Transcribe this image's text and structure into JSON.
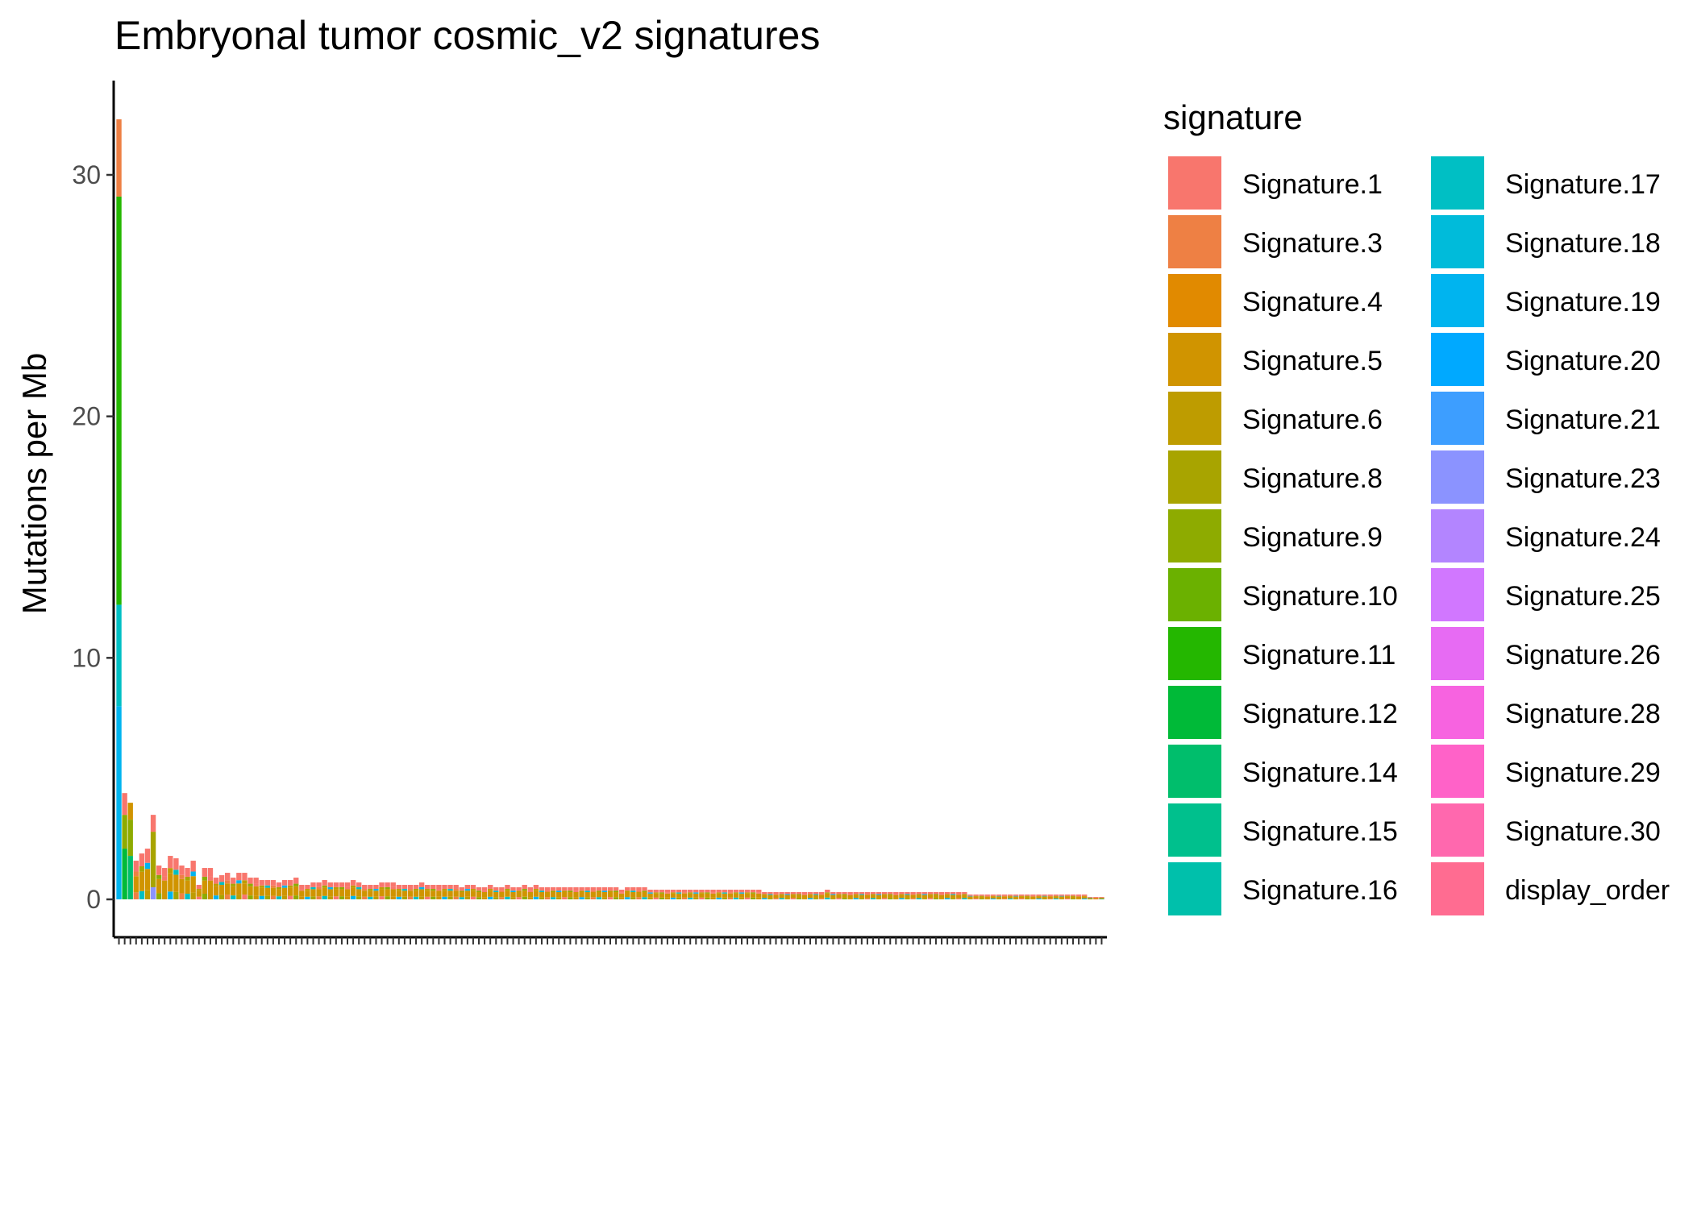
{
  "chart_data": {
    "type": "bar",
    "stacked": true,
    "title": "Embryonal tumor cosmic_v2 signatures",
    "xlabel": "",
    "ylabel": "Mutations per Mb",
    "ylim": [
      0,
      33.7
    ],
    "yticks": [
      0,
      10,
      20,
      30
    ],
    "grid": false,
    "legend_title": "signature",
    "legend_position": "right",
    "legend_columns": 2,
    "legend": [
      {
        "name": "Signature.1",
        "color": "#F8766D"
      },
      {
        "name": "Signature.3",
        "color": "#EE8044"
      },
      {
        "name": "Signature.4",
        "color": "#E18A00"
      },
      {
        "name": "Signature.5",
        "color": "#D09400"
      },
      {
        "name": "Signature.6",
        "color": "#BE9C00"
      },
      {
        "name": "Signature.8",
        "color": "#A8A400"
      },
      {
        "name": "Signature.9",
        "color": "#8EAB00"
      },
      {
        "name": "Signature.10",
        "color": "#6BB100"
      },
      {
        "name": "Signature.11",
        "color": "#24B700"
      },
      {
        "name": "Signature.12",
        "color": "#00BA38"
      },
      {
        "name": "Signature.14",
        "color": "#00BE6C"
      },
      {
        "name": "Signature.15",
        "color": "#00C08D"
      },
      {
        "name": "Signature.16",
        "color": "#00C0AB"
      },
      {
        "name": "Signature.17",
        "color": "#00BFC4"
      },
      {
        "name": "Signature.18",
        "color": "#00BBDA"
      },
      {
        "name": "Signature.19",
        "color": "#00B4EF"
      },
      {
        "name": "Signature.20",
        "color": "#00A9FF"
      },
      {
        "name": "Signature.21",
        "color": "#3D9EFF"
      },
      {
        "name": "Signature.23",
        "color": "#8B93FF"
      },
      {
        "name": "Signature.24",
        "color": "#B385FF"
      },
      {
        "name": "Signature.25",
        "color": "#D177FF"
      },
      {
        "name": "Signature.26",
        "color": "#E76BF3"
      },
      {
        "name": "Signature.28",
        "color": "#F763E0"
      },
      {
        "name": "Signature.29",
        "color": "#FF62C8"
      },
      {
        "name": "Signature.30",
        "color": "#FF68AE"
      },
      {
        "name": "display_order",
        "color": "#FF6C91"
      }
    ],
    "featured_bars": [
      {
        "index": 0,
        "segments": [
          {
            "signature": "Signature.19",
            "value": 8.0
          },
          {
            "signature": "Signature.17",
            "value": 4.2
          },
          {
            "signature": "Signature.11",
            "value": 16.9
          },
          {
            "signature": "Signature.3",
            "value": 3.2
          }
        ]
      },
      {
        "index": 1,
        "segments": [
          {
            "signature": "Signature.12",
            "value": 2.1
          },
          {
            "signature": "Signature.9",
            "value": 1.4
          },
          {
            "signature": "Signature.1",
            "value": 0.9
          }
        ]
      },
      {
        "index": 2,
        "segments": [
          {
            "signature": "Signature.14",
            "value": 1.8
          },
          {
            "signature": "Signature.9",
            "value": 1.5
          },
          {
            "signature": "Signature.5",
            "value": 0.7
          }
        ]
      },
      {
        "index": 6,
        "segments": [
          {
            "signature": "Signature.23",
            "value": 0.5
          },
          {
            "signature": "Signature.8",
            "value": 2.3
          },
          {
            "signature": "Signature.1",
            "value": 0.7
          }
        ]
      }
    ],
    "total_counts": [
      32.3,
      4.4,
      4.0,
      1.6,
      1.9,
      2.1,
      3.5,
      1.4,
      1.3,
      1.8,
      1.7,
      1.4,
      1.3,
      1.6,
      0.6,
      1.3,
      1.3,
      0.9,
      1.0,
      1.1,
      0.9,
      1.1,
      1.1,
      0.9,
      0.9,
      0.8,
      0.8,
      0.8,
      0.7,
      0.8,
      0.8,
      0.9,
      0.6,
      0.6,
      0.7,
      0.7,
      0.8,
      0.7,
      0.7,
      0.7,
      0.7,
      0.8,
      0.7,
      0.6,
      0.6,
      0.6,
      0.7,
      0.7,
      0.7,
      0.6,
      0.6,
      0.6,
      0.6,
      0.7,
      0.6,
      0.6,
      0.6,
      0.6,
      0.6,
      0.6,
      0.5,
      0.6,
      0.6,
      0.5,
      0.5,
      0.6,
      0.5,
      0.5,
      0.6,
      0.5,
      0.5,
      0.6,
      0.5,
      0.6,
      0.5,
      0.5,
      0.5,
      0.5,
      0.5,
      0.5,
      0.5,
      0.5,
      0.5,
      0.5,
      0.5,
      0.5,
      0.5,
      0.5,
      0.4,
      0.5,
      0.5,
      0.5,
      0.5,
      0.4,
      0.4,
      0.4,
      0.4,
      0.4,
      0.4,
      0.4,
      0.4,
      0.4,
      0.4,
      0.4,
      0.4,
      0.4,
      0.4,
      0.4,
      0.4,
      0.4,
      0.4,
      0.4,
      0.4,
      0.3,
      0.3,
      0.3,
      0.3,
      0.3,
      0.3,
      0.3,
      0.3,
      0.3,
      0.3,
      0.3,
      0.4,
      0.3,
      0.3,
      0.3,
      0.3,
      0.3,
      0.3,
      0.3,
      0.3,
      0.3,
      0.3,
      0.3,
      0.3,
      0.3,
      0.3,
      0.3,
      0.3,
      0.3,
      0.3,
      0.3,
      0.3,
      0.3,
      0.3,
      0.3,
      0.3,
      0.2,
      0.2,
      0.2,
      0.2,
      0.2,
      0.2,
      0.2,
      0.2,
      0.2,
      0.2,
      0.2,
      0.2,
      0.2,
      0.2,
      0.2,
      0.2,
      0.2,
      0.2,
      0.2,
      0.2,
      0.2,
      0.1,
      0.1,
      0.1
    ],
    "bar_mix": [
      "Signature.1",
      "Signature.3",
      "Signature.5",
      "Signature.6",
      "Signature.8",
      "Signature.9",
      "Signature.17",
      "Signature.19"
    ]
  }
}
